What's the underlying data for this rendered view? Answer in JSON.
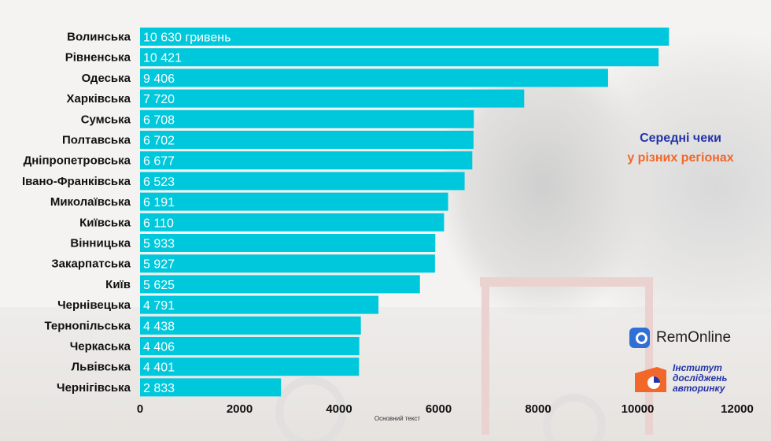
{
  "chart_data": {
    "type": "bar",
    "orientation": "horizontal",
    "categories": [
      "Волинська",
      "Рівненська",
      "Одеська",
      "Харківська",
      "Сумська",
      "Полтавська",
      "Дніпропетровська",
      "Івано-Франківська",
      "Миколаївська",
      "Київська",
      "Вінницька",
      "Закарпатська",
      "Київ",
      "Чернівецька",
      "Тернопільська",
      "Черкаська",
      "Львівська",
      "Чернігівська"
    ],
    "values": [
      10630,
      10421,
      9406,
      7720,
      6708,
      6702,
      6677,
      6523,
      6191,
      6110,
      5933,
      5927,
      5625,
      4791,
      4438,
      4406,
      4401,
      2833
    ],
    "value_labels": [
      "10 630  гривень",
      "10 421",
      "9 406",
      "7 720",
      "6 708",
      "6 702",
      "6 677",
      "6 523",
      "6 191",
      "6 110",
      "5 933",
      "5 927",
      "5 625",
      "4 791",
      "4 438",
      "4 406",
      "4 401",
      "2 833"
    ],
    "x_ticks": [
      "0",
      "2000",
      "4000",
      "6000",
      "8000",
      "10000",
      "12000"
    ],
    "xlim": [
      0,
      12000
    ],
    "xlabel": "Основний текст",
    "bar_color": "#00c8dc",
    "grid": false
  },
  "title": {
    "line1": "Середні чеки",
    "line2": "у різних регіонах",
    "color1": "#2433a8",
    "color2": "#f2672a"
  },
  "logos": {
    "remonline": "RemOnline",
    "institute_line1": "Інститут",
    "institute_line2": "досліджень",
    "institute_line3": "авторинку"
  }
}
